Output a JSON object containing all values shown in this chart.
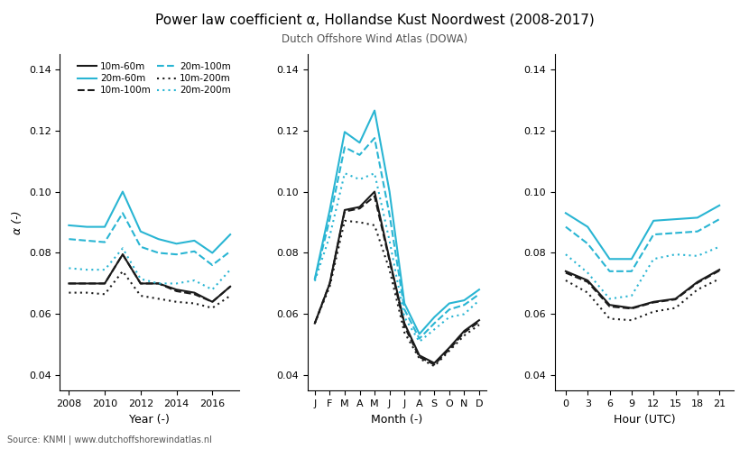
{
  "title": "Power law coefficient α, Hollandse Kust Noordwest (2008-2017)",
  "subtitle": "Dutch Offshore Wind Atlas (DOWA)",
  "ylabel": "α (-)",
  "source": "Source: KNMI | www.dutchoffshorewindatlas.nl",
  "year_x": [
    2008,
    2009,
    2010,
    2011,
    2012,
    2013,
    2014,
    2015,
    2016,
    2017
  ],
  "year_10m60m": [
    0.07,
    0.07,
    0.07,
    0.0795,
    0.07,
    0.07,
    0.068,
    0.067,
    0.064,
    0.069
  ],
  "year_10m100m": [
    0.07,
    0.07,
    0.07,
    0.0795,
    0.07,
    0.07,
    0.0675,
    0.0665,
    0.064,
    0.069
  ],
  "year_10m200m": [
    0.067,
    0.067,
    0.0665,
    0.074,
    0.066,
    0.065,
    0.064,
    0.0635,
    0.062,
    0.066
  ],
  "year_20m60m": [
    0.089,
    0.0885,
    0.0885,
    0.1,
    0.087,
    0.0845,
    0.083,
    0.084,
    0.08,
    0.086
  ],
  "year_20m100m": [
    0.0845,
    0.084,
    0.0835,
    0.093,
    0.082,
    0.08,
    0.0795,
    0.0805,
    0.076,
    0.0805
  ],
  "year_20m200m": [
    0.075,
    0.0745,
    0.0745,
    0.0815,
    0.0715,
    0.07,
    0.07,
    0.071,
    0.068,
    0.0745
  ],
  "month_x": [
    1,
    2,
    3,
    4,
    5,
    6,
    7,
    8,
    9,
    10,
    11,
    12
  ],
  "month_labels": [
    "J",
    "F",
    "M",
    "A",
    "M",
    "J",
    "J",
    "A",
    "S",
    "O",
    "N",
    "D"
  ],
  "month_10m60m": [
    0.057,
    0.07,
    0.094,
    0.095,
    0.1,
    0.078,
    0.057,
    0.0465,
    0.044,
    0.049,
    0.0545,
    0.058
  ],
  "month_10m100m": [
    0.057,
    0.07,
    0.0935,
    0.0945,
    0.0985,
    0.0775,
    0.056,
    0.046,
    0.0435,
    0.0485,
    0.054,
    0.0575
  ],
  "month_10m200m": [
    0.057,
    0.069,
    0.0905,
    0.09,
    0.089,
    0.0745,
    0.054,
    0.0455,
    0.043,
    0.048,
    0.053,
    0.0565
  ],
  "month_20m60m": [
    0.0715,
    0.094,
    0.1195,
    0.116,
    0.1265,
    0.1,
    0.0635,
    0.0535,
    0.059,
    0.0635,
    0.0645,
    0.068
  ],
  "month_20m100m": [
    0.0712,
    0.091,
    0.1145,
    0.112,
    0.1175,
    0.0925,
    0.0615,
    0.052,
    0.057,
    0.0615,
    0.063,
    0.0665
  ],
  "month_20m200m": [
    0.0708,
    0.0855,
    0.106,
    0.104,
    0.106,
    0.084,
    0.059,
    0.051,
    0.055,
    0.059,
    0.06,
    0.0645
  ],
  "hour_x": [
    0,
    3,
    6,
    9,
    12,
    15,
    18,
    21
  ],
  "hour_10m60m": [
    0.074,
    0.071,
    0.063,
    0.062,
    0.064,
    0.065,
    0.0705,
    0.0745
  ],
  "hour_10m100m": [
    0.0735,
    0.0705,
    0.0625,
    0.0618,
    0.0638,
    0.0648,
    0.0702,
    0.0742
  ],
  "hour_10m200m": [
    0.071,
    0.067,
    0.0585,
    0.058,
    0.0608,
    0.062,
    0.068,
    0.0715
  ],
  "hour_20m60m": [
    0.093,
    0.0885,
    0.078,
    0.078,
    0.0905,
    0.091,
    0.0915,
    0.0955
  ],
  "hour_20m100m": [
    0.0885,
    0.083,
    0.074,
    0.074,
    0.086,
    0.0865,
    0.087,
    0.091
  ],
  "hour_20m200m": [
    0.0795,
    0.0735,
    0.065,
    0.066,
    0.078,
    0.0795,
    0.079,
    0.082
  ],
  "color_black": "#1a1a1a",
  "color_cyan": "#29b5d3",
  "ylim": [
    0.035,
    0.145
  ],
  "yticks": [
    0.04,
    0.06,
    0.08,
    0.1,
    0.12,
    0.14
  ]
}
